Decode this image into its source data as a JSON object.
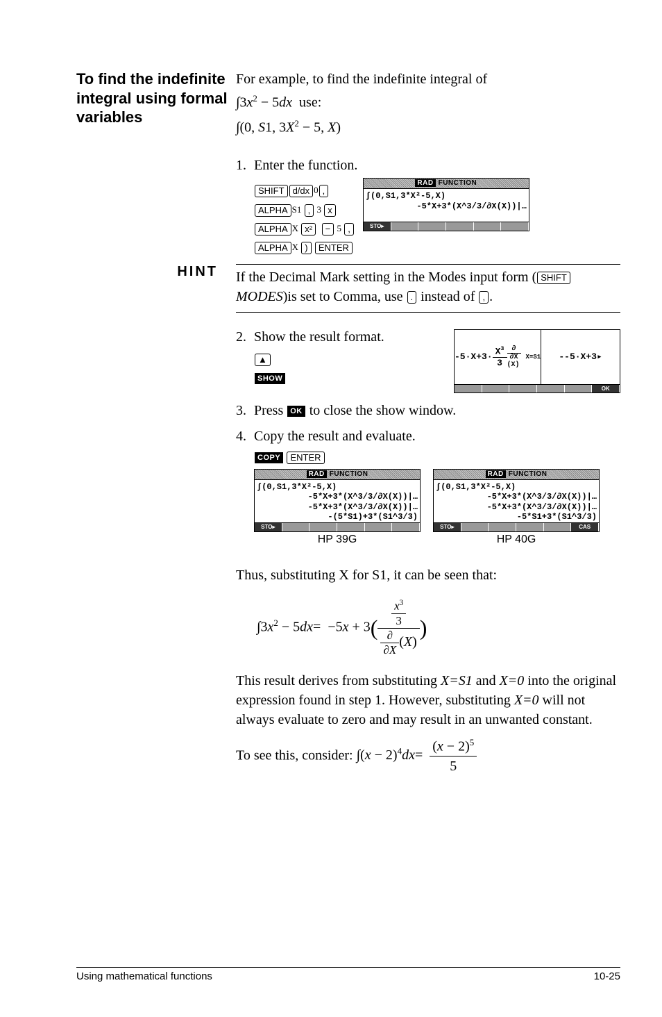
{
  "section_title": "To find the indefinite integral using formal variables",
  "intro_text": "For example, to find the indefinite integral of",
  "formula1_html": "∫3<span class='italic'>x</span><span class='sup'>2</span> − 5<span class='italic'>dx</span>&nbsp;&nbsp;use:",
  "formula2_html": "∫(0, <span class='italic'>S</span>1, 3<span class='italic'>X</span><span class='sup'>2</span> − 5, <span class='italic'>X</span>)",
  "step1_num": "1.",
  "step1_text": "Enter the function.",
  "keys": {
    "shift": "SHIFT",
    "ddx": "d/dx",
    "zero": "0",
    "comma": ",",
    "alpha": "ALPHA",
    "s1": "S1",
    "three": "3",
    "x": "x",
    "xcap": "X",
    "xsq": "x²",
    "minus": "−",
    "five": "5",
    "rparen": ")",
    "enter": "ENTER",
    "up": "▲",
    "show": "SHOW",
    "ok": "OK",
    "copy": "COPY",
    "modes": "MODES",
    "period": ".",
    "commakey": ","
  },
  "screen1": {
    "header_badge": "RAD",
    "header_text": "FUNCTION",
    "line1": "∫(0,S1,3*X²-5,X)",
    "line2": "-5*X+3*(X^3/3/∂X(X))|…",
    "menu": [
      "STO▸",
      "",
      "",
      "",
      "",
      ""
    ]
  },
  "hint_label": "HINT",
  "hint_text_1": "If the Decimal Mark setting in the Modes input form (",
  "hint_text_2": ")is set to Comma, use ",
  "hint_text_3": " instead of ",
  "hint_text_4": ".",
  "step2_num": "2.",
  "step2_text": "Show the result format.",
  "result_screen": {
    "left_html": "-5·X+3·<span class='frac'><span class='num'>X<span class='sup'>3</span></span><span class='den'>3</span></span><br><span style='font-size:10px'><span class='frac'><span class='num'>∂</span><span class='den'>∂X</span></span>(X)</span><sub style='font-size:9px'>X=S1</sub>",
    "right_text": "--5·X+3▸",
    "menu": [
      "",
      "",
      "",
      "",
      "",
      "OK"
    ]
  },
  "step3_num": "3.",
  "step3_text_1": "Press ",
  "step3_text_2": " to close the show window.",
  "step4_num": "4.",
  "step4_text": "Copy the result and evaluate.",
  "screen39": {
    "header_badge": "RAD",
    "header_text": "FUNCTION",
    "line1": "∫(0,S1,3*X²-5,X)",
    "line2": "-5*X+3*(X^3/3/∂X(X))|…",
    "line3": "-5*X+3*(X^3/3/∂X(X))|…",
    "line4": "-(5*S1)+3*(S1^3/3)",
    "menu": [
      "STO▸",
      "",
      "",
      "",
      "",
      ""
    ],
    "label": "HP 39G"
  },
  "screen40": {
    "header_badge": "RAD",
    "header_text": "FUNCTION",
    "line1": "∫(0,S1,3*X²-5,X)",
    "line2": "-5*X+3*(X^3/3/∂X(X))|…",
    "line3": "-5*X+3*(X^3/3/∂X(X))|…",
    "line4": "-5*S1+3*(S1^3/3)",
    "menu": [
      "STO▸",
      "",
      "",
      "",
      "",
      "CAS"
    ],
    "label": "HP 40G"
  },
  "para1": "Thus, substituting X for S1, it can be seen that:",
  "final_formula_html": "∫3<span class='italic'>x</span><span class='sup'>2</span> − 5<span class='italic'>dx</span>= &nbsp;−5<span class='italic'>x</span> + 3<span style='font-size:32px;vertical-align:middle'>(</span><span class='frac'><span class='num'><span class='frac' style='font-size:0.85em'><span class='num'><span class='italic'>x</span><span class='sup'>3</span></span><span class='den'>3</span></span></span><span class='den'><span class='frac' style='font-size:0.85em'><span class='num'>∂</span><span class='den'>∂<span class='italic'>X</span></span></span>(<span class='italic'>X</span>)</span></span><span style='font-size:32px;vertical-align:middle'>)</span>",
  "para2_html": "This result derives from substituting <span class='italic'>X=S1</span> and <span class='italic'>X=0</span> into the original expression found in step 1. However, substituting <span class='italic'>X=0</span> will not always evaluate to zero and may result in an unwanted constant.",
  "para3_prefix": "To see this, consider: ",
  "para3_formula_html": "∫(<span class='italic'>x</span> − 2)<span class='sup'>4</span><span class='italic'>dx</span>= &nbsp;<span class='frac'><span class='num'>(<span class='italic'>x</span> − 2)<span class='sup'>5</span></span><span class='den'>5</span></span>",
  "footer_left": "Using mathematical functions",
  "footer_right": "10-25"
}
